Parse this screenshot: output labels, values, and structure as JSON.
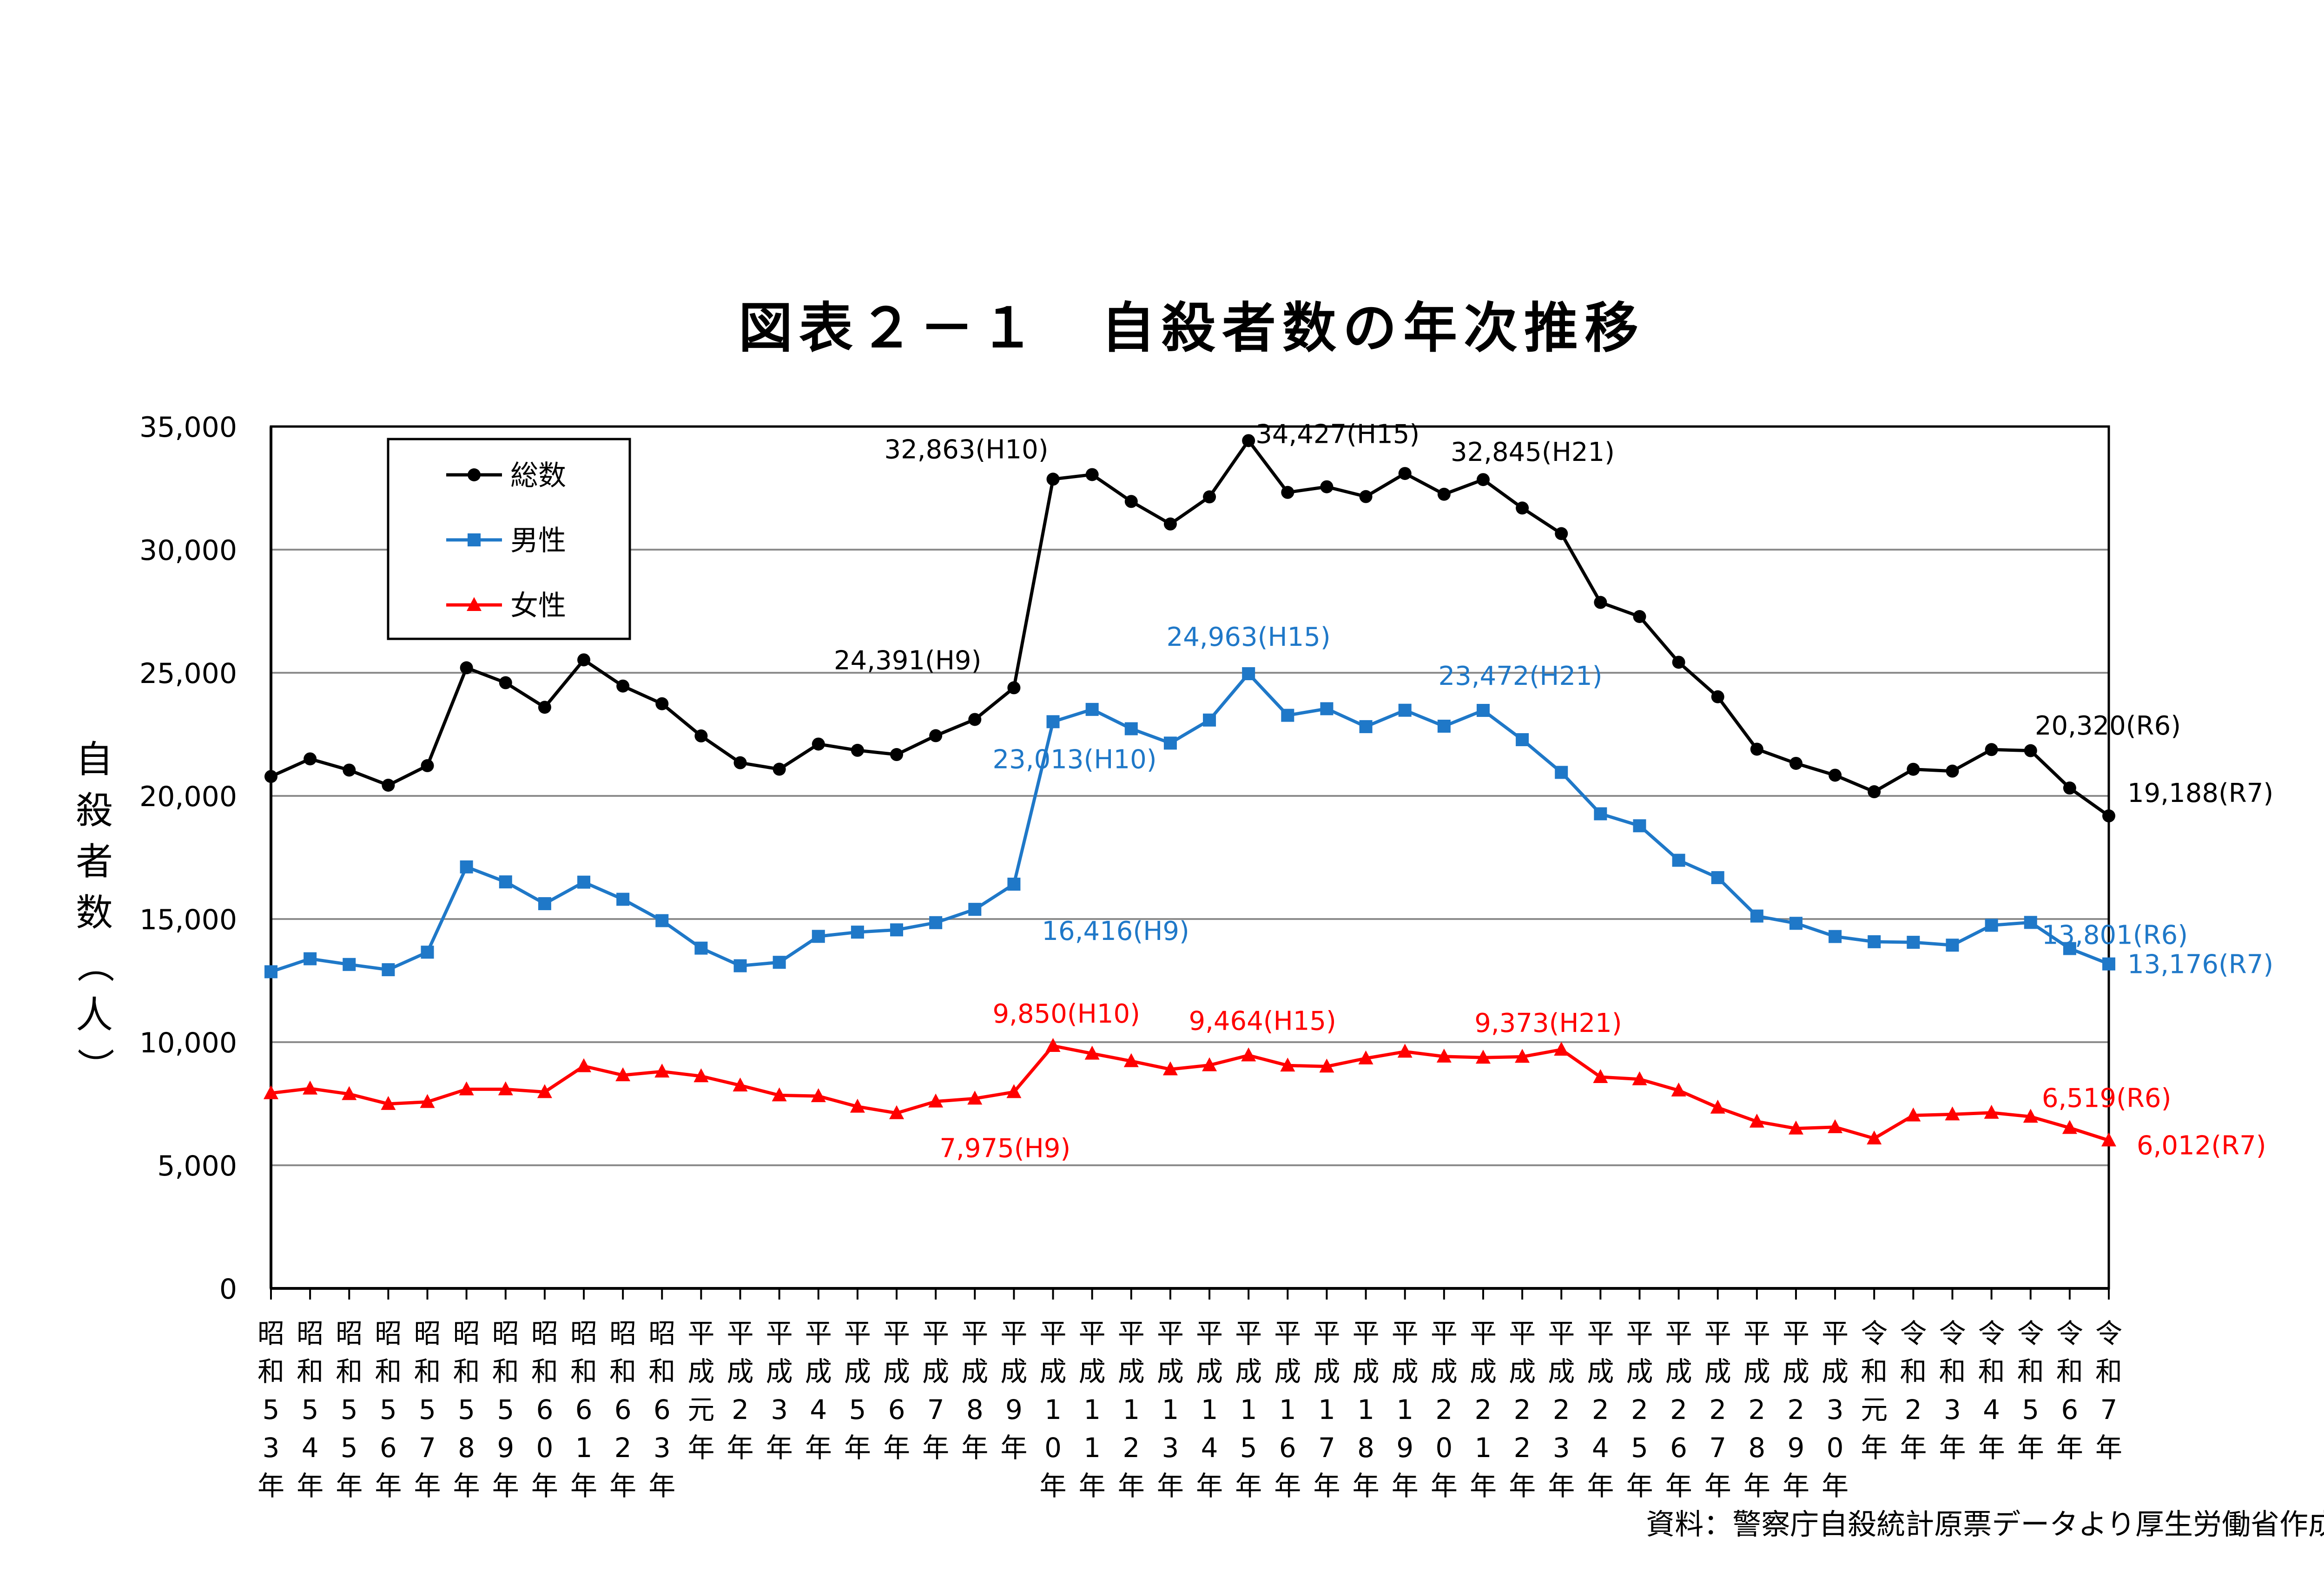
{
  "chart_data": {
    "type": "line",
    "title": "図表２－１　自殺者数の年次推移",
    "ylabel": "自殺者数（人）",
    "ylim": [
      0,
      35000
    ],
    "yticks": [
      "0",
      "5,000",
      "10,000",
      "15,000",
      "20,000",
      "25,000",
      "30,000",
      "35,000"
    ],
    "grid": true,
    "legend_position": "top-left",
    "categories": [
      "昭和53年",
      "昭和54年",
      "昭和55年",
      "昭和56年",
      "昭和57年",
      "昭和58年",
      "昭和59年",
      "昭和60年",
      "昭和61年",
      "昭和62年",
      "昭和63年",
      "平成元年",
      "平成2年",
      "平成3年",
      "平成4年",
      "平成5年",
      "平成6年",
      "平成7年",
      "平成8年",
      "平成9年",
      "平成10年",
      "平成11年",
      "平成12年",
      "平成13年",
      "平成14年",
      "平成15年",
      "平成16年",
      "平成17年",
      "平成18年",
      "平成19年",
      "平成20年",
      "平成21年",
      "平成22年",
      "平成23年",
      "平成24年",
      "平成25年",
      "平成26年",
      "平成27年",
      "平成28年",
      "平成29年",
      "平成30年",
      "令和元年",
      "令和2年",
      "令和3年",
      "令和4年",
      "令和5年",
      "令和6年",
      "令和7年"
    ],
    "series": [
      {
        "name": "総数",
        "color": "#000000",
        "marker": "circle",
        "values": [
          20788,
          21503,
          21048,
          20434,
          21228,
          25202,
          24596,
          23599,
          25524,
          24460,
          23742,
          22436,
          21346,
          21084,
          22104,
          21851,
          21679,
          22445,
          23104,
          24391,
          32863,
          33048,
          31957,
          31042,
          32143,
          34427,
          32325,
          32552,
          32155,
          33093,
          32249,
          32845,
          31690,
          30651,
          27858,
          27283,
          25427,
          24025,
          21897,
          21321,
          20840,
          20169,
          21081,
          21007,
          21881,
          21837,
          20320,
          19188
        ],
        "annotations": [
          {
            "index": 19,
            "text": "24,391(H9)"
          },
          {
            "index": 20,
            "text": "32,863(H10)"
          },
          {
            "index": 25,
            "text": "34,427(H15)"
          },
          {
            "index": 31,
            "text": "32,845(H21)"
          },
          {
            "index": 46,
            "text": "20,320(R6)"
          },
          {
            "index": 47,
            "text": "19,188(R7)"
          }
        ]
      },
      {
        "name": "男性",
        "color": "#1f78c8",
        "marker": "square",
        "values": [
          12859,
          13386,
          13155,
          12942,
          13654,
          17116,
          16508,
          15624,
          16497,
          15802,
          14934,
          13818,
          13102,
          13242,
          14296,
          14468,
          14560,
          14853,
          15393,
          16416,
          23013,
          23512,
          22727,
          22144,
          23080,
          24963,
          23272,
          23540,
          22813,
          23478,
          22831,
          23472,
          22283,
          20955,
          19273,
          18787,
          17386,
          16681,
          15121,
          14826,
          14290,
          14078,
          14055,
          13939,
          14746,
          14862,
          13801,
          13176
        ],
        "annotations": [
          {
            "index": 19,
            "text": "16,416(H9)"
          },
          {
            "index": 20,
            "text": "23,013(H10)"
          },
          {
            "index": 25,
            "text": "24,963(H15)"
          },
          {
            "index": 31,
            "text": "23,472(H21)"
          },
          {
            "index": 46,
            "text": "13,801(R6)"
          },
          {
            "index": 47,
            "text": "13,176(R7)"
          }
        ]
      },
      {
        "name": "女性",
        "color": "#ff0000",
        "marker": "triangle",
        "values": [
          7929,
          8117,
          7893,
          7492,
          7574,
          8086,
          8088,
          7975,
          9027,
          8658,
          8808,
          8618,
          8244,
          7842,
          7808,
          7383,
          7119,
          7592,
          7711,
          7975,
          9850,
          9536,
          9230,
          8898,
          9063,
          9464,
          9053,
          9012,
          9342,
          9615,
          9418,
          9373,
          9407,
          9696,
          8585,
          8496,
          8041,
          7344,
          6776,
          6495,
          6550,
          6091,
          7026,
          7068,
          7135,
          6975,
          6519,
          6012
        ],
        "annotations": [
          {
            "index": 19,
            "text": "7,975(H9)"
          },
          {
            "index": 20,
            "text": "9,850(H10)"
          },
          {
            "index": 25,
            "text": "9,464(H15)"
          },
          {
            "index": 31,
            "text": "9,373(H21)"
          },
          {
            "index": 46,
            "text": "6,519(R6)"
          },
          {
            "index": 47,
            "text": "6,012(R7)"
          }
        ]
      }
    ]
  },
  "source": "資料：警察庁自殺統計原票データより厚生労働省作成"
}
